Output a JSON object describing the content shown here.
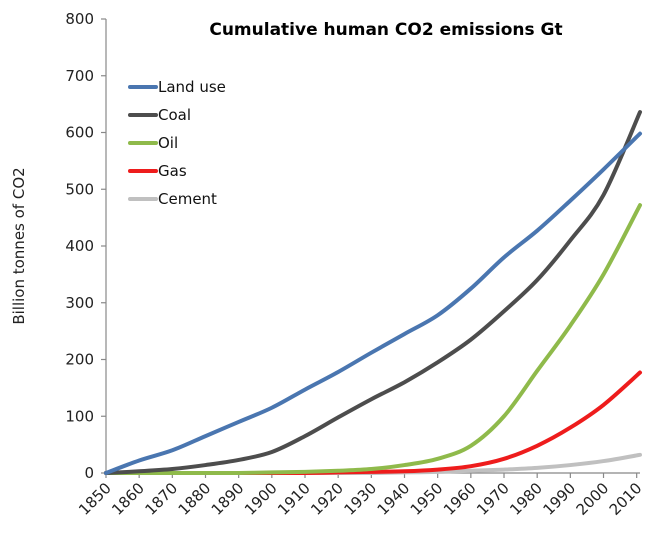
{
  "chart_data": {
    "type": "line",
    "title": "Cumulative human CO2 emissions  Gt",
    "xlabel": "",
    "ylabel": "Billion tonnes of CO2",
    "xlim": [
      1850,
      2011
    ],
    "ylim": [
      0,
      800
    ],
    "yticks": [
      0,
      100,
      200,
      300,
      400,
      500,
      600,
      700,
      800
    ],
    "xticks": [
      1850,
      1860,
      1870,
      1880,
      1890,
      1900,
      1910,
      1920,
      1930,
      1940,
      1950,
      1960,
      1970,
      1980,
      1990,
      2000,
      2010
    ],
    "grid": false,
    "legend_position": "top-left",
    "x": [
      1850,
      1860,
      1870,
      1880,
      1890,
      1900,
      1910,
      1920,
      1930,
      1940,
      1950,
      1960,
      1970,
      1980,
      1990,
      2000,
      2011
    ],
    "series": [
      {
        "name": "Land use",
        "color": "#4a76b0",
        "values": [
          0,
          22,
          40,
          65,
          90,
          115,
          147,
          178,
          212,
          245,
          278,
          325,
          380,
          427,
          480,
          535,
          598
        ]
      },
      {
        "name": "Coal",
        "color": "#4d4d4d",
        "values": [
          0,
          3,
          7,
          14,
          23,
          37,
          65,
          98,
          130,
          160,
          195,
          235,
          285,
          340,
          410,
          490,
          636
        ]
      },
      {
        "name": "Oil",
        "color": "#8fba4b",
        "values": [
          0,
          0,
          0,
          0,
          0,
          1,
          2,
          4,
          7,
          14,
          25,
          48,
          100,
          180,
          260,
          350,
          472
        ]
      },
      {
        "name": "Gas",
        "color": "#ee1c1c",
        "values": [
          0,
          0,
          0,
          0,
          0,
          0,
          0,
          1,
          2,
          3,
          6,
          12,
          25,
          48,
          80,
          120,
          177
        ]
      },
      {
        "name": "Cement",
        "color": "#c0c0c0",
        "values": [
          0,
          0,
          0,
          0,
          0,
          0,
          0,
          0,
          0,
          1,
          2,
          4,
          6,
          9,
          14,
          21,
          32
        ]
      }
    ]
  }
}
